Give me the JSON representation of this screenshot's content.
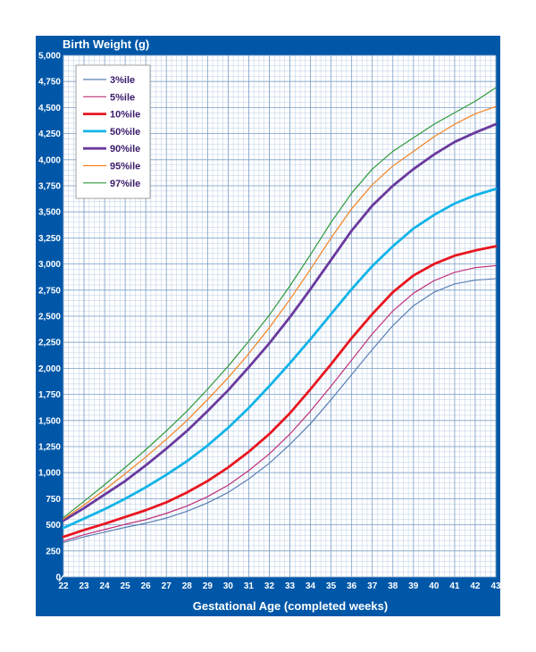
{
  "chart_data": {
    "type": "line",
    "title": "",
    "ylabel": "Birth Weight (g)",
    "xlabel": "Gestational Age (completed weeks)",
    "xlim": [
      22,
      43
    ],
    "ylim": [
      0,
      5000
    ],
    "x_ticks": [
      22,
      23,
      24,
      25,
      26,
      27,
      28,
      29,
      30,
      31,
      32,
      33,
      34,
      35,
      36,
      37,
      38,
      39,
      40,
      41,
      42,
      43
    ],
    "y_ticks": [
      0,
      250,
      500,
      750,
      1000,
      1250,
      1500,
      1750,
      2000,
      2250,
      2500,
      2750,
      3000,
      3250,
      3500,
      3750,
      4000,
      4250,
      4500,
      4750,
      5000
    ],
    "y_tick_labels": [
      "0",
      "250",
      "500",
      "750",
      "1,000",
      "1,250",
      "1,500",
      "1,750",
      "2,000",
      "2,250",
      "2,500",
      "2,750",
      "3,000",
      "3,250",
      "3,500",
      "3,750",
      "4,000",
      "4,250",
      "4,500",
      "4,750",
      "5,000"
    ],
    "grid": true,
    "legend_position": "top-left",
    "x": [
      22,
      23,
      24,
      25,
      26,
      27,
      28,
      29,
      30,
      31,
      32,
      33,
      34,
      35,
      36,
      37,
      38,
      39,
      40,
      41,
      42,
      43
    ],
    "series": [
      {
        "name": "3%ile",
        "color": "#5b7fb5",
        "width": 1.2,
        "values": [
          330,
          385,
          430,
          475,
          515,
          565,
          630,
          710,
          810,
          940,
          1090,
          1270,
          1470,
          1700,
          1940,
          2180,
          2410,
          2600,
          2730,
          2810,
          2845,
          2860
        ]
      },
      {
        "name": "5%ile",
        "color": "#c0307a",
        "width": 1.2,
        "values": [
          345,
          405,
          455,
          505,
          550,
          610,
          680,
          770,
          880,
          1020,
          1180,
          1370,
          1590,
          1830,
          2080,
          2330,
          2550,
          2720,
          2840,
          2920,
          2965,
          2985
        ]
      },
      {
        "name": "10%ile",
        "color": "#e8161f",
        "width": 2.8,
        "values": [
          385,
          450,
          510,
          575,
          640,
          715,
          810,
          920,
          1050,
          1200,
          1370,
          1570,
          1800,
          2040,
          2290,
          2520,
          2730,
          2890,
          3000,
          3080,
          3130,
          3170
        ]
      },
      {
        "name": "50%ile",
        "color": "#12b4e8",
        "width": 2.8,
        "values": [
          470,
          560,
          650,
          750,
          860,
          980,
          1110,
          1260,
          1430,
          1620,
          1830,
          2050,
          2280,
          2520,
          2760,
          2980,
          3170,
          3340,
          3470,
          3580,
          3660,
          3720
        ]
      },
      {
        "name": "90%ile",
        "color": "#6a3a9e",
        "width": 2.8,
        "values": [
          540,
          660,
          790,
          920,
          1070,
          1230,
          1400,
          1590,
          1790,
          2010,
          2240,
          2490,
          2760,
          3040,
          3320,
          3560,
          3750,
          3910,
          4050,
          4170,
          4260,
          4340
        ]
      },
      {
        "name": "95%ile",
        "color": "#f58220",
        "width": 1.2,
        "values": [
          555,
          690,
          835,
          990,
          1150,
          1320,
          1500,
          1700,
          1910,
          2140,
          2390,
          2660,
          2950,
          3250,
          3530,
          3760,
          3940,
          4080,
          4220,
          4340,
          4440,
          4510
        ]
      },
      {
        "name": "97%ile",
        "color": "#2f9a3a",
        "width": 1.2,
        "values": [
          570,
          725,
          885,
          1050,
          1220,
          1400,
          1590,
          1800,
          2020,
          2260,
          2510,
          2790,
          3090,
          3400,
          3680,
          3910,
          4080,
          4210,
          4340,
          4450,
          4560,
          4690
        ]
      }
    ]
  }
}
